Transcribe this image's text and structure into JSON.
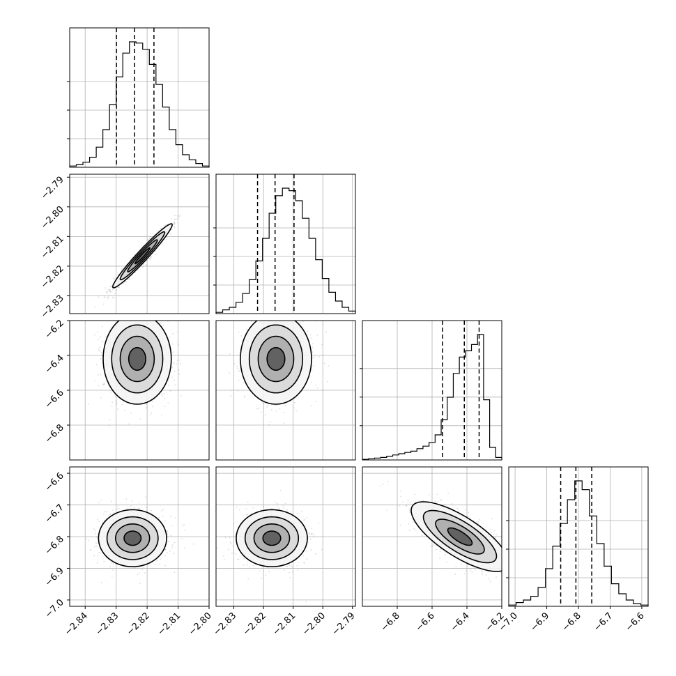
{
  "chart_data": {
    "type": "corner",
    "title": "",
    "grid": true,
    "parameters": [
      {
        "range": [
          -2.845,
          -2.8
        ],
        "ticks": [
          -2.84,
          -2.83,
          -2.82,
          -2.81,
          -2.8
        ],
        "tick_labels": [
          "−2.84",
          "−2.83",
          "−2.82",
          "−2.81",
          "−2.80"
        ],
        "hist_counts": [
          0.01,
          0.02,
          0.04,
          0.08,
          0.16,
          0.3,
          0.5,
          0.72,
          0.91,
          1.0,
          0.99,
          0.94,
          0.82,
          0.66,
          0.48,
          0.3,
          0.18,
          0.1,
          0.06,
          0.03,
          0.01
        ],
        "quantiles": [
          -2.8299,
          -2.8241,
          -2.8178
        ],
        "diag_ticks": [
          0.25,
          0.5,
          0.75
        ]
      },
      {
        "range": [
          -2.836,
          -2.789
        ],
        "ticks": [
          -2.83,
          -2.82,
          -2.81,
          -2.8,
          -2.79
        ],
        "tick_labels": [
          "−2.83",
          "−2.82",
          "−2.81",
          "−2.80",
          "−2.79"
        ],
        "left_tick_labels": [
          "−2.83",
          "−2.82",
          "−2.81",
          "−2.80",
          "−2.79"
        ],
        "hist_counts": [
          0.01,
          0.03,
          0.05,
          0.09,
          0.16,
          0.27,
          0.42,
          0.6,
          0.8,
          0.94,
          1.0,
          0.98,
          0.9,
          0.76,
          0.6,
          0.43,
          0.28,
          0.17,
          0.1,
          0.05,
          0.02
        ],
        "quantiles": [
          -2.822,
          -2.8161,
          -2.8097
        ],
        "diag_ticks": [
          0.25,
          0.5,
          0.75
        ]
      },
      {
        "range": [
          -7.0,
          -6.2
        ],
        "ticks": [
          -6.8,
          -6.6,
          -6.4,
          -6.2
        ],
        "tick_labels": [
          "−6.8",
          "−6.6",
          "−6.4",
          "−6.2"
        ],
        "left_ticks": [
          -6.8,
          -6.6,
          -6.4,
          -6.2
        ],
        "left_tick_labels": [
          "−6.8",
          "−6.6",
          "−6.4",
          "−6.2"
        ],
        "hist_counts": [
          0.005,
          0.01,
          0.015,
          0.02,
          0.03,
          0.04,
          0.05,
          0.06,
          0.07,
          0.09,
          0.11,
          0.14,
          0.2,
          0.32,
          0.5,
          0.69,
          0.82,
          0.87,
          0.92,
          1.0,
          0.48,
          0.1,
          0.02
        ],
        "quantiles": [
          -6.54,
          -6.415,
          -6.33
        ],
        "diag_ticks": [
          0.3,
          0.55,
          0.8
        ]
      },
      {
        "range": [
          -7.02,
          -6.58
        ],
        "ticks": [
          -7.0,
          -6.9,
          -6.8,
          -6.7,
          -6.6
        ],
        "tick_labels": [
          "−7.0",
          "−6.9",
          "−6.8",
          "−6.7",
          "−6.6"
        ],
        "left_tick_labels": [
          "−7.0",
          "−6.9",
          "−6.8",
          "−6.7",
          "−6.6"
        ],
        "hist_counts": [
          0.01,
          0.03,
          0.05,
          0.08,
          0.15,
          0.3,
          0.48,
          0.66,
          0.85,
          1.0,
          0.93,
          0.72,
          0.5,
          0.32,
          0.18,
          0.1,
          0.05,
          0.02,
          0.01
        ],
        "quantiles": [
          -6.856,
          -6.808,
          -6.758
        ],
        "diag_ticks": [
          0.25,
          0.5,
          0.75
        ]
      }
    ],
    "pairs": [
      {
        "row": 1,
        "col": 0,
        "center": [
          -2.8215,
          -2.8165
        ],
        "sigma": [
          0.0048,
          0.0054
        ],
        "rho": 0.97
      },
      {
        "row": 2,
        "col": 0,
        "center": [
          -2.8232,
          -6.42
        ],
        "sigma": [
          0.0055,
          0.13
        ],
        "rho": 0.0
      },
      {
        "row": 2,
        "col": 1,
        "center": [
          -2.8158,
          -6.42
        ],
        "sigma": [
          0.006,
          0.13
        ],
        "rho": 0.0
      },
      {
        "row": 3,
        "col": 0,
        "center": [
          -2.8247,
          -6.805
        ],
        "sigma": [
          0.0055,
          0.045
        ],
        "rho": 0.0
      },
      {
        "row": 3,
        "col": 1,
        "center": [
          -2.8172,
          -6.805
        ],
        "sigma": [
          0.006,
          0.045
        ],
        "rho": 0.0
      },
      {
        "row": 3,
        "col": 2,
        "center": [
          -6.44,
          -6.8
        ],
        "sigma": [
          0.14,
          0.055
        ],
        "rho": -0.75
      }
    ]
  }
}
